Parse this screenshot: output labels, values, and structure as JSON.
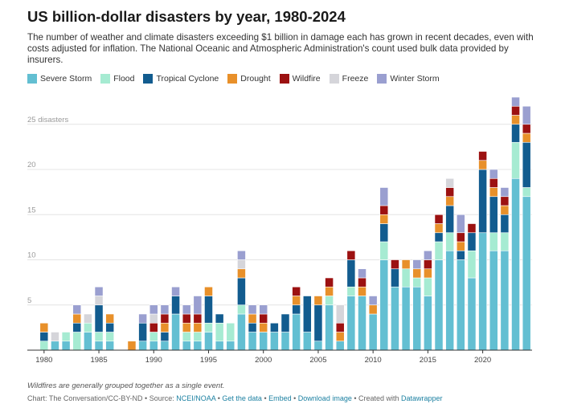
{
  "title": "US billion-dollar disasters by year, 1980-2024",
  "description": "The number of weather and climate disasters exceeding $1 billion in damage each has grown in recent decades, even with costs adjusted for inflation. The National Oceanic and Atmospheric Administration's count used bulk data provided by insurers.",
  "note": "Wildfires are generally grouped together as a single event.",
  "footer": {
    "credit": "Chart: The Conversation/CC-BY-ND • Source: ",
    "source": "NCEI/NOAA",
    "sep1": " • ",
    "get_data": "Get the data",
    "sep2": " • ",
    "embed": "Embed",
    "sep3": " • ",
    "download": "Download image",
    "sep4": " • Created with ",
    "made_with": "Datawrapper"
  },
  "legend": [
    {
      "name": "Severe Storm",
      "color": "#63bfd2"
    },
    {
      "name": "Flood",
      "color": "#a6ebd2"
    },
    {
      "name": "Tropical Cyclone",
      "color": "#125c8f"
    },
    {
      "name": "Drought",
      "color": "#e8902a"
    },
    {
      "name": "Wildfire",
      "color": "#9c1111"
    },
    {
      "name": "Freeze",
      "color": "#d5d5da"
    },
    {
      "name": "Winter Storm",
      "color": "#9a9fd0"
    }
  ],
  "chart_data": {
    "type": "bar",
    "stacked": true,
    "x": [
      1980,
      1981,
      1982,
      1983,
      1984,
      1985,
      1986,
      1987,
      1988,
      1989,
      1990,
      1991,
      1992,
      1993,
      1994,
      1995,
      1996,
      1997,
      1998,
      1999,
      2000,
      2001,
      2002,
      2003,
      2004,
      2005,
      2006,
      2007,
      2008,
      2009,
      2010,
      2011,
      2012,
      2013,
      2014,
      2015,
      2016,
      2017,
      2018,
      2019,
      2020,
      2021,
      2022,
      2023,
      2024
    ],
    "xticks": [
      1980,
      1985,
      1990,
      1995,
      2000,
      2005,
      2010,
      2015,
      2020
    ],
    "yticks": [
      5,
      10,
      15,
      20,
      25
    ],
    "ytick_labels": [
      "5",
      "10",
      "15",
      "20",
      "25 disasters"
    ],
    "ylim": [
      0,
      28
    ],
    "grid": true,
    "series": [
      {
        "name": "Severe Storm",
        "color": "#63bfd2",
        "values": [
          0,
          1,
          1,
          0,
          2,
          1,
          1,
          0,
          0,
          1,
          1,
          1,
          4,
          1,
          1,
          2,
          1,
          1,
          4,
          2,
          2,
          2,
          2,
          4,
          2,
          1,
          5,
          1,
          6,
          6,
          4,
          10,
          7,
          7,
          7,
          6,
          10,
          11,
          10,
          8,
          13,
          11,
          11,
          19,
          17
        ]
      },
      {
        "name": "Flood",
        "color": "#a6ebd2",
        "values": [
          1,
          0,
          1,
          2,
          1,
          1,
          1,
          0,
          0,
          0,
          1,
          0,
          0,
          1,
          1,
          1,
          2,
          2,
          1,
          0,
          0,
          0,
          0,
          0,
          0,
          0,
          1,
          0,
          1,
          0,
          0,
          2,
          0,
          2,
          1,
          2,
          2,
          2,
          0,
          3,
          0,
          2,
          2,
          4,
          1
        ]
      },
      {
        "name": "Tropical Cyclone",
        "color": "#125c8f",
        "values": [
          1,
          0,
          0,
          1,
          0,
          3,
          1,
          0,
          0,
          2,
          0,
          1,
          2,
          0,
          0,
          3,
          1,
          0,
          3,
          1,
          0,
          1,
          2,
          1,
          4,
          4,
          0,
          0,
          3,
          0,
          0,
          2,
          2,
          0,
          0,
          0,
          1,
          3,
          1,
          2,
          7,
          4,
          2,
          2,
          5
        ]
      },
      {
        "name": "Drought",
        "color": "#e8902a",
        "values": [
          1,
          0,
          0,
          1,
          0,
          0,
          1,
          0,
          1,
          0,
          0,
          1,
          0,
          1,
          1,
          1,
          0,
          0,
          1,
          1,
          1,
          0,
          0,
          1,
          0,
          1,
          1,
          1,
          0,
          1,
          1,
          1,
          0,
          1,
          1,
          1,
          1,
          1,
          1,
          0,
          1,
          1,
          1,
          1,
          1
        ]
      },
      {
        "name": "Wildfire",
        "color": "#9c1111",
        "values": [
          0,
          0,
          0,
          0,
          0,
          0,
          0,
          0,
          0,
          0,
          1,
          1,
          0,
          1,
          1,
          0,
          0,
          0,
          0,
          0,
          1,
          0,
          0,
          1,
          0,
          0,
          1,
          1,
          1,
          1,
          0,
          1,
          1,
          0,
          0,
          1,
          1,
          1,
          1,
          1,
          1,
          1,
          1,
          1,
          1
        ]
      },
      {
        "name": "Freeze",
        "color": "#d5d5da",
        "values": [
          0,
          1,
          0,
          0,
          1,
          1,
          0,
          0,
          0,
          0,
          1,
          0,
          0,
          0,
          0,
          0,
          0,
          0,
          1,
          0,
          0,
          0,
          0,
          0,
          0,
          0,
          0,
          2,
          0,
          0,
          0,
          0,
          0,
          0,
          0,
          0,
          0,
          1,
          0,
          0,
          0,
          0,
          0,
          0,
          0
        ]
      },
      {
        "name": "Winter Storm",
        "color": "#9a9fd0",
        "values": [
          0,
          0,
          0,
          1,
          0,
          1,
          0,
          0,
          0,
          1,
          1,
          1,
          1,
          1,
          2,
          0,
          0,
          0,
          1,
          1,
          1,
          0,
          0,
          0,
          0,
          0,
          0,
          0,
          0,
          1,
          1,
          2,
          0,
          0,
          1,
          1,
          0,
          0,
          2,
          0,
          0,
          1,
          1,
          1,
          2
        ]
      }
    ]
  }
}
